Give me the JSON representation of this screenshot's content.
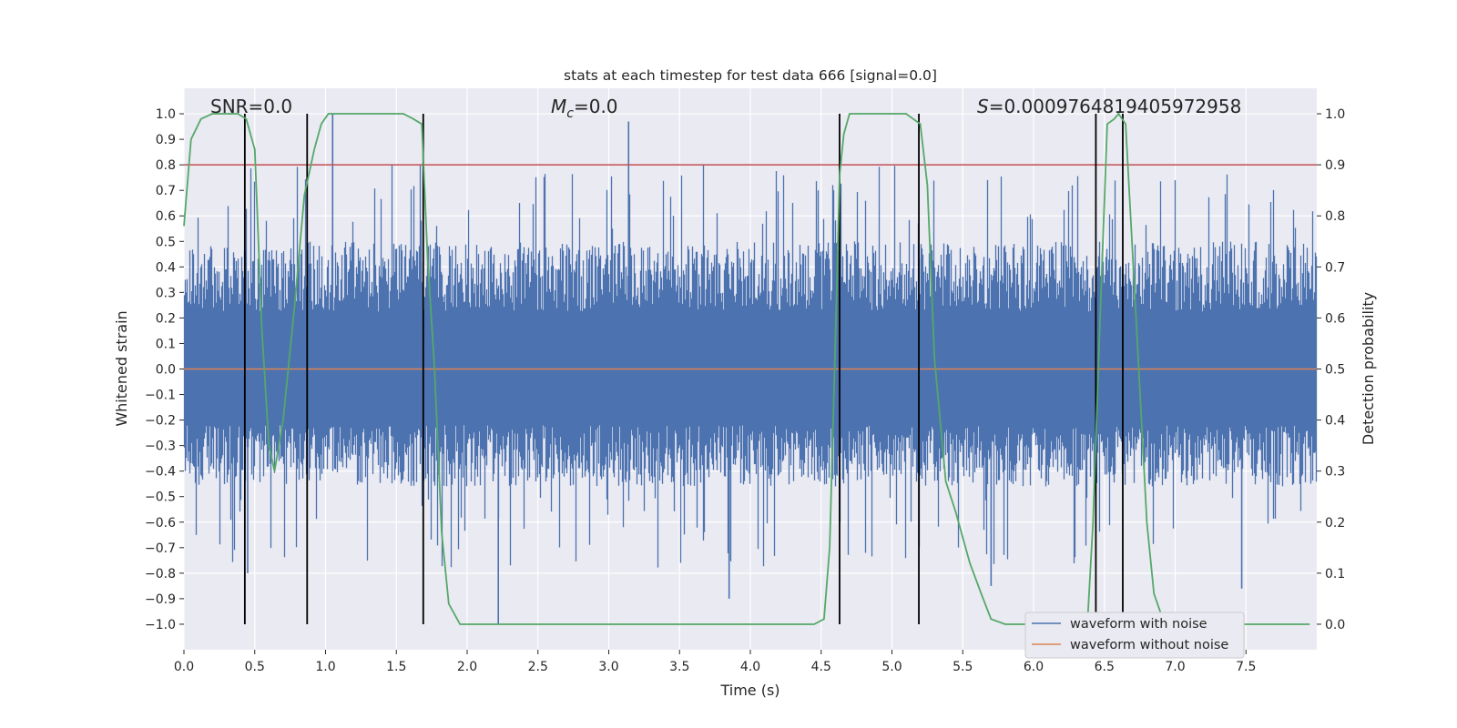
{
  "chart_data": {
    "type": "line",
    "title": "stats at each timestep for test data 666 [signal=0.0]",
    "xlabel": "Time (s)",
    "ylabel_left": "Whitened strain",
    "ylabel_right": "Detection probability",
    "xlim": [
      0.0,
      8.0
    ],
    "ylim_left": [
      -1.1,
      1.1
    ],
    "ylim_right": [
      -0.05,
      1.05
    ],
    "x_ticks": [
      "0.0",
      "0.5",
      "1.0",
      "1.5",
      "2.0",
      "2.5",
      "3.0",
      "3.5",
      "4.0",
      "4.5",
      "5.0",
      "5.5",
      "6.0",
      "6.5",
      "7.0",
      "7.5"
    ],
    "y_left_ticks": [
      "1.0",
      "0.9",
      "0.8",
      "0.7",
      "0.6",
      "0.5",
      "0.4",
      "0.3",
      "0.2",
      "0.1",
      "0.0",
      "-0.1",
      "-0.2",
      "-0.3",
      "-0.4",
      "-0.5",
      "-0.6",
      "-0.7",
      "-0.8",
      "-0.9",
      "-1.0"
    ],
    "y_right_ticks": [
      "1.0",
      "0.9",
      "0.8",
      "0.7",
      "0.6",
      "0.5",
      "0.4",
      "0.3",
      "0.2",
      "0.1",
      "0.0"
    ],
    "annotations": {
      "snr": "SNR=0.0",
      "mc_symbol": "M",
      "mc_sub": "c",
      "mc_value": "=0.0",
      "s_symbol": "S",
      "s_value": "=0.0009764819405972958"
    },
    "legend": {
      "placement": "lower-right",
      "items": [
        "waveform with noise",
        "waveform without noise"
      ]
    },
    "grid": true,
    "series": [
      {
        "name": "waveform with noise",
        "axis": "left",
        "color": "#4c72b0",
        "description_values": {
          "envelope_typical": [
            -0.4,
            0.5
          ],
          "notable_peaks": [
            [
              1.05,
              1.0
            ],
            [
              2.22,
              -1.0
            ],
            [
              3.14,
              0.97
            ],
            [
              0.45,
              -0.8
            ],
            [
              3.85,
              -0.9
            ],
            [
              5.7,
              -0.85
            ],
            [
              7.47,
              -0.86
            ]
          ]
        }
      },
      {
        "name": "waveform without noise",
        "axis": "left",
        "color": "#dd8452",
        "constant": 0.0
      },
      {
        "name": "detection probability",
        "axis": "right",
        "color": "#55a868",
        "x": [
          0.0,
          0.05,
          0.12,
          0.2,
          0.3,
          0.38,
          0.44,
          0.5,
          0.55,
          0.6,
          0.64,
          0.7,
          0.78,
          0.85,
          0.92,
          0.97,
          1.02,
          1.08,
          1.2,
          1.4,
          1.55,
          1.62,
          1.68,
          1.72,
          1.77,
          1.82,
          1.87,
          1.95,
          2.1,
          2.4,
          3.0,
          3.5,
          4.0,
          4.45,
          4.52,
          4.56,
          4.6,
          4.63,
          4.66,
          4.7,
          4.8,
          5.0,
          5.1,
          5.15,
          5.2,
          5.25,
          5.3,
          5.38,
          5.45,
          5.55,
          5.63,
          5.7,
          5.8,
          6.0,
          6.2,
          6.38,
          6.42,
          6.47,
          6.52,
          6.57,
          6.6,
          6.65,
          6.72,
          6.8,
          6.85,
          6.9,
          7.0,
          7.5,
          7.95
        ],
        "values": [
          0.78,
          0.95,
          0.99,
          1.0,
          1.0,
          1.0,
          0.99,
          0.93,
          0.58,
          0.35,
          0.3,
          0.4,
          0.62,
          0.84,
          0.93,
          0.98,
          1.0,
          1.0,
          1.0,
          1.0,
          1.0,
          0.99,
          0.98,
          0.72,
          0.5,
          0.18,
          0.04,
          0.0,
          0.0,
          0.0,
          0.0,
          0.0,
          0.0,
          0.0,
          0.01,
          0.15,
          0.55,
          0.88,
          0.96,
          1.0,
          1.0,
          1.0,
          1.0,
          0.99,
          0.98,
          0.86,
          0.52,
          0.28,
          0.22,
          0.12,
          0.06,
          0.01,
          0.0,
          0.0,
          0.0,
          0.0,
          0.2,
          0.6,
          0.98,
          0.99,
          1.0,
          0.98,
          0.62,
          0.2,
          0.06,
          0.02,
          0.0,
          0.0,
          0.0
        ]
      },
      {
        "name": "threshold",
        "axis": "right",
        "color": "#c44e52",
        "constant": 0.9
      }
    ],
    "vertical_markers_x": [
      0.43,
      0.87,
      1.69,
      4.63,
      5.19,
      6.44,
      6.63
    ],
    "vertical_markers_range": [
      -1.0,
      1.0
    ]
  }
}
